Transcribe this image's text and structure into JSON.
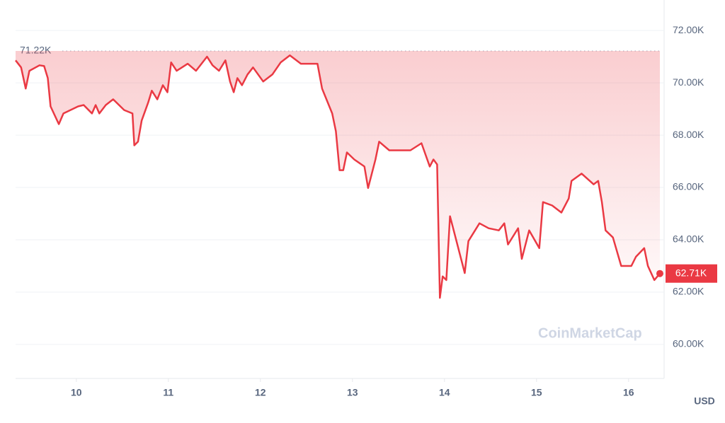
{
  "chart_data": {
    "type": "line",
    "x": [
      9.34,
      9.4,
      9.45,
      9.49,
      9.6,
      9.65,
      9.69,
      9.72,
      9.81,
      9.86,
      10.02,
      10.08,
      10.17,
      10.21,
      10.25,
      10.32,
      10.4,
      10.52,
      10.61,
      10.63,
      10.67,
      10.71,
      10.78,
      10.82,
      10.88,
      10.94,
      10.99,
      11.03,
      11.09,
      11.21,
      11.3,
      11.42,
      11.48,
      11.55,
      11.62,
      11.67,
      11.71,
      11.75,
      11.8,
      11.86,
      11.92,
      12.03,
      12.13,
      12.22,
      12.32,
      12.44,
      12.62,
      12.67,
      12.78,
      12.82,
      12.86,
      12.9,
      12.94,
      13.02,
      13.13,
      13.17,
      13.25,
      13.29,
      13.4,
      13.52,
      13.63,
      13.75,
      13.84,
      13.88,
      13.92,
      13.95,
      13.98,
      14.02,
      14.06,
      14.1,
      14.15,
      14.22,
      14.26,
      14.38,
      14.48,
      14.59,
      14.65,
      14.69,
      14.8,
      14.84,
      14.92,
      15.03,
      15.07,
      15.17,
      15.27,
      15.35,
      15.38,
      15.49,
      15.62,
      15.67,
      15.71,
      15.75,
      15.83,
      15.92,
      16.03,
      16.08,
      16.17,
      16.21,
      16.28,
      16.34
    ],
    "values": [
      70860,
      70590,
      69780,
      70460,
      70670,
      70640,
      70180,
      69100,
      68420,
      68830,
      69100,
      69150,
      68830,
      69150,
      68830,
      69150,
      69370,
      68960,
      68830,
      67610,
      67750,
      68560,
      69240,
      69700,
      69370,
      69910,
      69640,
      70780,
      70460,
      70730,
      70460,
      71000,
      70670,
      70460,
      70860,
      70050,
      69640,
      70180,
      69910,
      70320,
      70590,
      70050,
      70320,
      70780,
      71050,
      70730,
      70730,
      69780,
      68830,
      68150,
      66660,
      66660,
      67340,
      67070,
      66800,
      65980,
      67070,
      67750,
      67420,
      67420,
      67420,
      67690,
      66800,
      67070,
      66880,
      61780,
      62600,
      62460,
      64900,
      64360,
      63680,
      62730,
      63950,
      64630,
      64440,
      64360,
      64630,
      63820,
      64440,
      63270,
      64360,
      63680,
      65440,
      65310,
      65040,
      65580,
      66250,
      66530,
      66120,
      66250,
      65440,
      64360,
      64090,
      63000,
      63000,
      63350,
      63680,
      63000,
      62460,
      62710
    ],
    "color": "#ea3943",
    "xlim": [
      9.34,
      16.34
    ],
    "xticks": [
      10,
      11,
      12,
      13,
      14,
      15,
      16
    ],
    "ylim": [
      58700,
      72950
    ],
    "yticks": [
      {
        "value": 60000,
        "label": "60.00K"
      },
      {
        "value": 62000,
        "label": "62.00K"
      },
      {
        "value": 64000,
        "label": "64.00K"
      },
      {
        "value": 66000,
        "label": "66.00K"
      },
      {
        "value": 68000,
        "label": "68.00K"
      },
      {
        "value": 70000,
        "label": "70.00K"
      },
      {
        "value": 72000,
        "label": "72.00K"
      }
    ],
    "grid": true,
    "reference": {
      "value": 71220,
      "label": "71.22K"
    },
    "last_price": {
      "value": 62710,
      "label": "62.71K"
    },
    "currency": "USD",
    "watermark": "CoinMarketCap"
  }
}
